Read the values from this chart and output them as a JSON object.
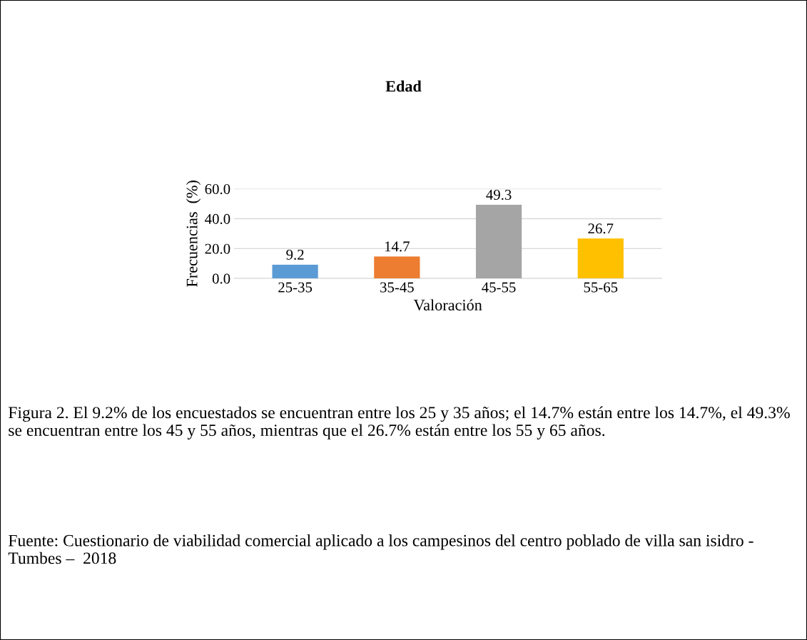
{
  "chart_data": {
    "type": "bar",
    "title": "Edad",
    "xlabel": "Valoración",
    "ylabel": "Frecuencias  (%)",
    "categories": [
      "25-35",
      "35-45",
      "45-55",
      "55-65"
    ],
    "values": [
      9.2,
      14.7,
      49.3,
      26.7
    ],
    "colors": [
      "#5b9bd5",
      "#ed7d31",
      "#a5a5a5",
      "#ffc000"
    ],
    "ylim": [
      0,
      60
    ],
    "yticks": [
      {
        "value": 0,
        "label": "0.0"
      },
      {
        "value": 20,
        "label": "20.0"
      },
      {
        "value": 40,
        "label": "40.0"
      },
      {
        "value": 60,
        "label": "60.0"
      }
    ],
    "grid": "y",
    "data_labels": true,
    "legend": false,
    "annotations": [
      "Figura 2. El 9.2% de los encuestados se encuentran entre los 25 y 35 años; el 14.7% están entre los 14.7%, el 49.3% se encuentran entre los 45 y 55 años, mientras que el 26.7% están entre los 55 y 65 años.",
      "Fuente: Cuestionario de viabilidad comercial aplicado a los campesinos del centro poblado de villa san isidro - Tumbes –  2018"
    ]
  }
}
